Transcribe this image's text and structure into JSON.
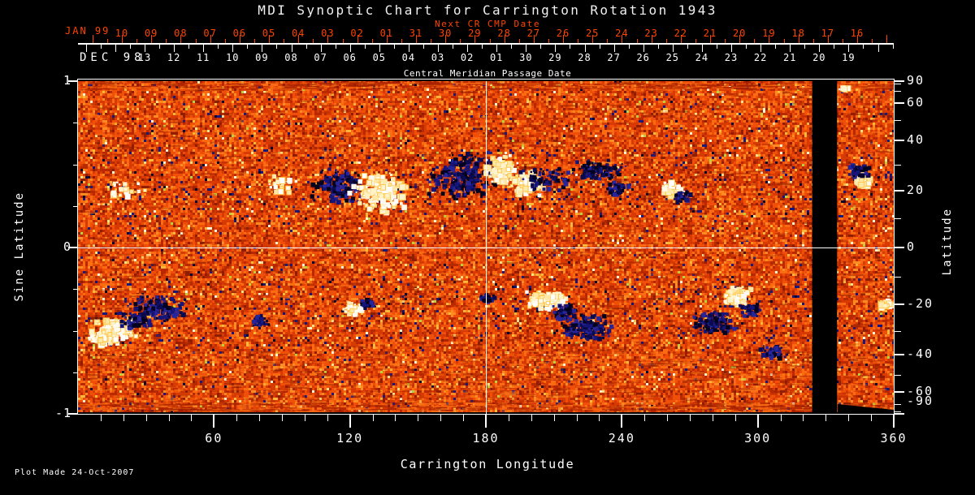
{
  "title": "MDI Synoptic Chart for Carrington Rotation 1943",
  "footer": "Plot Made 24-Oct-2007",
  "colors": {
    "background": "#000000",
    "text": "#ffffff",
    "next_cr_accent": "#ff4400",
    "positive_polarity_white": "#ffffff",
    "negative_polarity_navy": "#10106a",
    "quiet_sun_palette": [
      "#8f1d00",
      "#b82900",
      "#d83a03",
      "#ef4f08",
      "#fb6b12",
      "#ff8c22",
      "#ffb83a"
    ]
  },
  "chart_data": {
    "type": "heatmap",
    "title": "MDI Synoptic Chart for Carrington Rotation 1943",
    "description": "Solar photospheric magnetic field synoptic map: orange mottle = quiet Sun, white patches = positive polarity, dark navy/black patches = negative polarity, black vertical band = missing data",
    "x_axis": {
      "label": "Carrington Longitude",
      "min": 0,
      "max": 360,
      "major_ticks": [
        60,
        120,
        180,
        240,
        300,
        360
      ],
      "minor_tick_step": 10
    },
    "y_axis_left": {
      "label": "Sine Latitude",
      "min": -1,
      "max": 1,
      "labeled_ticks": [
        1,
        0,
        -1
      ],
      "minor_tick_step": 0.25
    },
    "y_axis_right": {
      "label": "Latitude",
      "labeled_ticks": [
        90,
        60,
        40,
        20,
        0,
        -20,
        -40,
        -60,
        -90
      ],
      "minor_tick_step": 10
    },
    "cmp_axis": {
      "label": "Central Meridian Passage Date",
      "month_label": "DEC 98",
      "day_labels": [
        "13",
        "12",
        "11",
        "10",
        "09",
        "08",
        "07",
        "06",
        "05",
        "04",
        "03",
        "02",
        "01",
        "30",
        "29",
        "28",
        "27",
        "26",
        "25",
        "24",
        "23",
        "22",
        "21",
        "20",
        "19"
      ]
    },
    "next_cr_axis": {
      "label": "Next CR CMP Date",
      "month_label": "JAN 99",
      "day_labels": [
        "10",
        "09",
        "08",
        "07",
        "06",
        "05",
        "04",
        "03",
        "02",
        "01",
        "31",
        "30",
        "29",
        "28",
        "27",
        "26",
        "25",
        "24",
        "23",
        "22",
        "21",
        "20",
        "19",
        "18",
        "17",
        "16"
      ]
    },
    "grid_lines": {
      "vertical_lon": 180,
      "horizontal_sine_lat": 0
    },
    "data_gap_lon": [
      324,
      335
    ],
    "active_regions": [
      {
        "lon": 114,
        "sin_lat": 0.38,
        "lon_spread": 13,
        "sin_spread": 0.11,
        "polarity": "negative",
        "blobs": 150
      },
      {
        "lon": 132,
        "sin_lat": 0.34,
        "lon_spread": 14,
        "sin_spread": 0.12,
        "polarity": "positive",
        "blobs": 160
      },
      {
        "lon": 170,
        "sin_lat": 0.44,
        "lon_spread": 16,
        "sin_spread": 0.15,
        "polarity": "negative",
        "blobs": 240
      },
      {
        "lon": 186,
        "sin_lat": 0.47,
        "lon_spread": 8,
        "sin_spread": 0.1,
        "polarity": "positive",
        "blobs": 100
      },
      {
        "lon": 196,
        "sin_lat": 0.4,
        "lon_spread": 9,
        "sin_spread": 0.09,
        "polarity": "positive",
        "blobs": 80
      },
      {
        "lon": 205,
        "sin_lat": 0.42,
        "lon_spread": 12,
        "sin_spread": 0.07,
        "polarity": "negative",
        "blobs": 70
      },
      {
        "lon": 229,
        "sin_lat": 0.48,
        "lon_spread": 13,
        "sin_spread": 0.06,
        "polarity": "negative",
        "blobs": 90
      },
      {
        "lon": 237,
        "sin_lat": 0.36,
        "lon_spread": 6,
        "sin_spread": 0.05,
        "polarity": "negative",
        "blobs": 40
      },
      {
        "lon": 261,
        "sin_lat": 0.36,
        "lon_spread": 5,
        "sin_spread": 0.05,
        "polarity": "positive",
        "blobs": 50
      },
      {
        "lon": 266,
        "sin_lat": 0.32,
        "lon_spread": 5,
        "sin_spread": 0.04,
        "polarity": "negative",
        "blobs": 30
      },
      {
        "lon": 20,
        "sin_lat": 0.36,
        "lon_spread": 10,
        "sin_spread": 0.05,
        "polarity": "positive",
        "blobs": 20
      },
      {
        "lon": 88,
        "sin_lat": 0.38,
        "lon_spread": 8,
        "sin_spread": 0.06,
        "polarity": "positive",
        "blobs": 25
      },
      {
        "lon": 346,
        "sin_lat": 0.41,
        "lon_spread": 4,
        "sin_spread": 0.05,
        "polarity": "positive",
        "blobs": 45
      },
      {
        "lon": 344,
        "sin_lat": 0.47,
        "lon_spread": 5,
        "sin_spread": 0.05,
        "polarity": "negative",
        "blobs": 50
      },
      {
        "lon": 337,
        "sin_lat": 0.96,
        "lon_spread": 2,
        "sin_spread": 0.02,
        "polarity": "positive",
        "blobs": 12
      },
      {
        "lon": 16,
        "sin_lat": -0.48,
        "lon_spread": 10,
        "sin_spread": 0.07,
        "polarity": "positive",
        "blobs": 130
      },
      {
        "lon": 10,
        "sin_lat": -0.53,
        "lon_spread": 7,
        "sin_spread": 0.05,
        "polarity": "positive",
        "blobs": 60
      },
      {
        "lon": 35,
        "sin_lat": -0.36,
        "lon_spread": 13,
        "sin_spread": 0.08,
        "polarity": "negative",
        "blobs": 140
      },
      {
        "lon": 24,
        "sin_lat": -0.43,
        "lon_spread": 8,
        "sin_spread": 0.06,
        "polarity": "negative",
        "blobs": 60
      },
      {
        "lon": 79,
        "sin_lat": -0.43,
        "lon_spread": 5,
        "sin_spread": 0.04,
        "polarity": "negative",
        "blobs": 35
      },
      {
        "lon": 121,
        "sin_lat": -0.36,
        "lon_spread": 5,
        "sin_spread": 0.04,
        "polarity": "positive",
        "blobs": 35
      },
      {
        "lon": 127,
        "sin_lat": -0.33,
        "lon_spread": 4,
        "sin_spread": 0.03,
        "polarity": "negative",
        "blobs": 25
      },
      {
        "lon": 180,
        "sin_lat": -0.3,
        "lon_spread": 4,
        "sin_spread": 0.03,
        "polarity": "negative",
        "blobs": 25
      },
      {
        "lon": 206,
        "sin_lat": -0.31,
        "lon_spread": 9,
        "sin_spread": 0.06,
        "polarity": "positive",
        "blobs": 120
      },
      {
        "lon": 224,
        "sin_lat": -0.47,
        "lon_spread": 11,
        "sin_spread": 0.08,
        "polarity": "negative",
        "blobs": 140
      },
      {
        "lon": 214,
        "sin_lat": -0.38,
        "lon_spread": 6,
        "sin_spread": 0.05,
        "polarity": "negative",
        "blobs": 50
      },
      {
        "lon": 280,
        "sin_lat": -0.44,
        "lon_spread": 10,
        "sin_spread": 0.07,
        "polarity": "negative",
        "blobs": 120
      },
      {
        "lon": 290,
        "sin_lat": -0.28,
        "lon_spread": 6,
        "sin_spread": 0.06,
        "polarity": "positive",
        "blobs": 100
      },
      {
        "lon": 296,
        "sin_lat": -0.36,
        "lon_spread": 5,
        "sin_spread": 0.05,
        "polarity": "negative",
        "blobs": 40
      },
      {
        "lon": 306,
        "sin_lat": -0.62,
        "lon_spread": 7,
        "sin_spread": 0.04,
        "polarity": "negative",
        "blobs": 50
      },
      {
        "lon": 356,
        "sin_lat": -0.33,
        "lon_spread": 3,
        "sin_spread": 0.04,
        "polarity": "positive",
        "blobs": 35
      }
    ]
  }
}
